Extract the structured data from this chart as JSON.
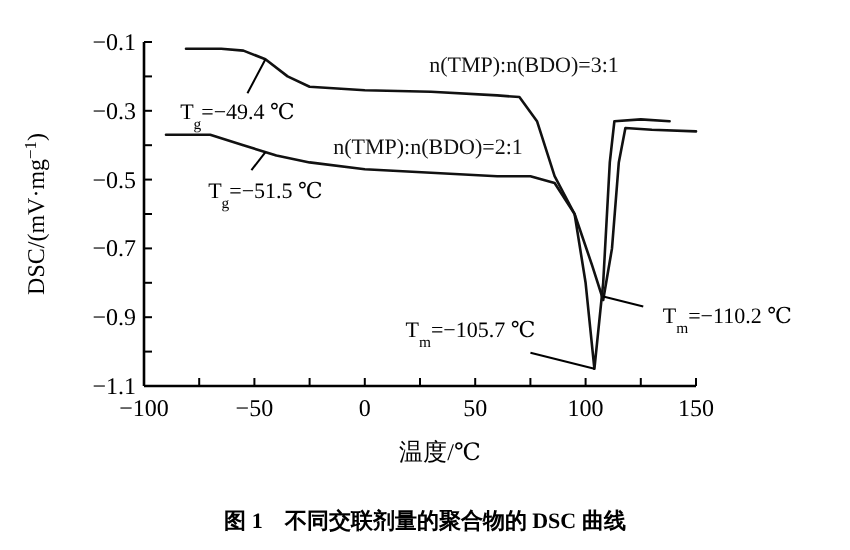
{
  "chart_data": {
    "type": "line",
    "title": "图 1　不同交联剂量的聚合物的 DSC 曲线",
    "xlabel": "温度/℃",
    "ylabel": "DSC/(mV·mg$^{−1}$)",
    "xlim": [
      -100,
      150
    ],
    "xticks": [
      -100,
      {
        "value": -75,
        "label": null
      },
      -50,
      {
        "value": -25,
        "label": null
      },
      0,
      {
        "value": 25,
        "label": null
      },
      50,
      {
        "value": 75,
        "label": null
      },
      100,
      {
        "value": 125,
        "label": null
      },
      150
    ],
    "ylim": [
      -1.1,
      -0.1
    ],
    "yticks": [
      -0.1,
      {
        "value": -0.2,
        "label": null
      },
      -0.3,
      {
        "value": -0.4,
        "label": null
      },
      -0.5,
      {
        "value": -0.6,
        "label": null
      },
      -0.7,
      {
        "value": -0.8,
        "label": null
      },
      -0.9,
      {
        "value": -1.0,
        "label": null
      },
      -1.1
    ],
    "grid": false,
    "marker": "none",
    "line_style": "solid",
    "series": [
      {
        "name": "n(TMP):n(BDO)=3:1",
        "color": "#111111",
        "x": [
          -81,
          -65,
          -55,
          -45,
          -35,
          -25,
          0,
          30,
          60,
          70,
          78,
          86,
          95,
          100,
          104,
          108,
          111,
          113,
          125,
          138
        ],
        "values": [
          -0.12,
          -0.12,
          -0.125,
          -0.15,
          -0.2,
          -0.23,
          -0.24,
          -0.245,
          -0.255,
          -0.26,
          -0.33,
          -0.49,
          -0.6,
          -0.8,
          -1.05,
          -0.8,
          -0.45,
          -0.33,
          -0.325,
          -0.33
        ]
      },
      {
        "name": "n(TMP):n(BDO)=2:1",
        "color": "#111111",
        "x": [
          -90,
          -70,
          -55,
          -40,
          -25,
          0,
          30,
          60,
          75,
          86,
          95,
          103,
          108,
          112,
          115,
          118,
          130,
          150
        ],
        "values": [
          -0.37,
          -0.37,
          -0.4,
          -0.43,
          -0.45,
          -0.47,
          -0.48,
          -0.49,
          -0.49,
          -0.51,
          -0.6,
          -0.75,
          -0.85,
          -0.7,
          -0.45,
          -0.35,
          -0.355,
          -0.36
        ]
      }
    ],
    "annotations": [
      {
        "text": "T$_{g}$=−49.4 ℃",
        "x": -45,
        "y": -0.15
      },
      {
        "text": "T$_{g}$=−51.5 ℃",
        "x": -45,
        "y": -0.42
      },
      {
        "text": "T$_{m}$=−105.7 ℃",
        "x": 104,
        "y": -1.05
      },
      {
        "text": "T$_{m}$=−110.2 ℃",
        "x": 108,
        "y": -0.84
      }
    ]
  }
}
